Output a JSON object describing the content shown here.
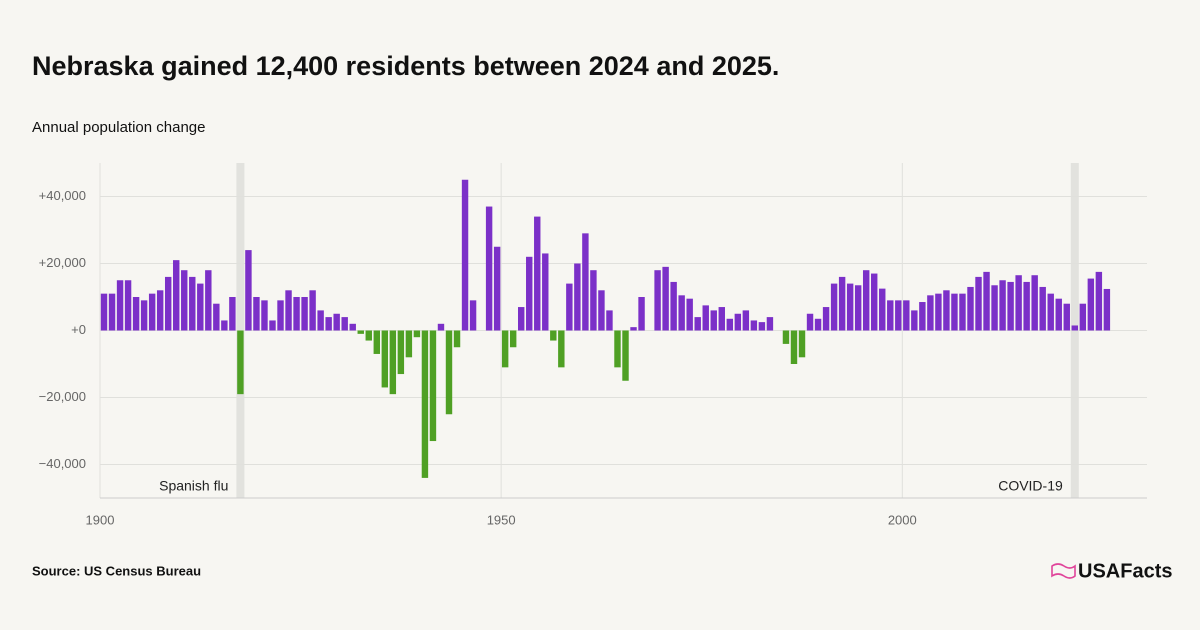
{
  "chart_data": {
    "type": "bar",
    "title": "Nebraska gained 12,400 residents between 2024 and 2025.",
    "subtitle": "Annual population change",
    "source": "Source: US Census Bureau",
    "brand": "USAFacts",
    "x": [
      1900,
      1901,
      1902,
      1903,
      1904,
      1905,
      1906,
      1907,
      1908,
      1909,
      1910,
      1911,
      1912,
      1913,
      1914,
      1915,
      1916,
      1917,
      1918,
      1919,
      1920,
      1921,
      1922,
      1923,
      1924,
      1925,
      1926,
      1927,
      1928,
      1929,
      1930,
      1931,
      1932,
      1933,
      1934,
      1935,
      1936,
      1937,
      1938,
      1939,
      1940,
      1941,
      1942,
      1943,
      1944,
      1945,
      1946,
      1947,
      1948,
      1949,
      1950,
      1951,
      1952,
      1953,
      1954,
      1955,
      1956,
      1957,
      1958,
      1959,
      1960,
      1961,
      1962,
      1963,
      1964,
      1965,
      1966,
      1967,
      1968,
      1969,
      1970,
      1971,
      1972,
      1973,
      1974,
      1975,
      1976,
      1977,
      1978,
      1979,
      1980,
      1981,
      1982,
      1983,
      1984,
      1985,
      1986,
      1987,
      1988,
      1989,
      1990,
      1991,
      1992,
      1993,
      1994,
      1995,
      1996,
      1997,
      1998,
      1999,
      2000,
      2001,
      2002,
      2003,
      2004,
      2005,
      2006,
      2007,
      2008,
      2009,
      2010,
      2011,
      2012,
      2013,
      2014,
      2015,
      2016,
      2017,
      2018,
      2019,
      2020,
      2021,
      2022,
      2023,
      2024,
      2025
    ],
    "values": [
      11000,
      11000,
      15000,
      15000,
      10000,
      9000,
      11000,
      12000,
      16000,
      21000,
      18000,
      16000,
      14000,
      18000,
      8000,
      3000,
      10000,
      -19000,
      24000,
      10000,
      9000,
      3000,
      9000,
      12000,
      10000,
      10000,
      12000,
      6000,
      4000,
      5000,
      4000,
      2000,
      -1000,
      -3000,
      -7000,
      -17000,
      -19000,
      -13000,
      -8000,
      -2000,
      -44000,
      -33000,
      2000,
      -25000,
      -5000,
      45000,
      9000,
      0,
      37000,
      25000,
      -11000,
      -5000,
      7000,
      22000,
      34000,
      23000,
      -3000,
      -11000,
      14000,
      20000,
      29000,
      18000,
      12000,
      6000,
      -11000,
      -15000,
      1000,
      10000,
      0,
      18000,
      19000,
      14500,
      10500,
      9500,
      4000,
      7500,
      6000,
      7000,
      3500,
      5000,
      6000,
      3000,
      2500,
      4000,
      0,
      -4000,
      -10000,
      -8000,
      5000,
      3500,
      7000,
      14000,
      16000,
      14000,
      13500,
      18000,
      17000,
      12500,
      9000,
      9000,
      9000,
      6000,
      8500,
      10500,
      11000,
      12000,
      11000,
      11000,
      13000,
      16000,
      17500,
      13500,
      15000,
      14500,
      16500,
      14500,
      16500,
      13000,
      11000,
      9500,
      8000,
      1500,
      8000,
      15500,
      17500,
      12400
    ],
    "positive_color": "#7b30c8",
    "negative_color": "#4fa024",
    "highlights": [
      {
        "label": "Spanish flu",
        "x": 1917
      },
      {
        "label": "COVID-19",
        "x": 2021
      }
    ],
    "highlight_color": "#e2e2de",
    "xlim": [
      1900,
      2030.5
    ],
    "xticks": [
      1900,
      1950,
      2000
    ],
    "ylim": [
      -50000,
      50000
    ],
    "yticks": [
      {
        "value": 40000,
        "label": "+40,000"
      },
      {
        "value": 20000,
        "label": "+20,000"
      },
      {
        "value": 0,
        "label": "+0"
      },
      {
        "value": -20000,
        "label": "−20,000"
      },
      {
        "value": -40000,
        "label": "−40,000"
      }
    ],
    "grid": true
  }
}
